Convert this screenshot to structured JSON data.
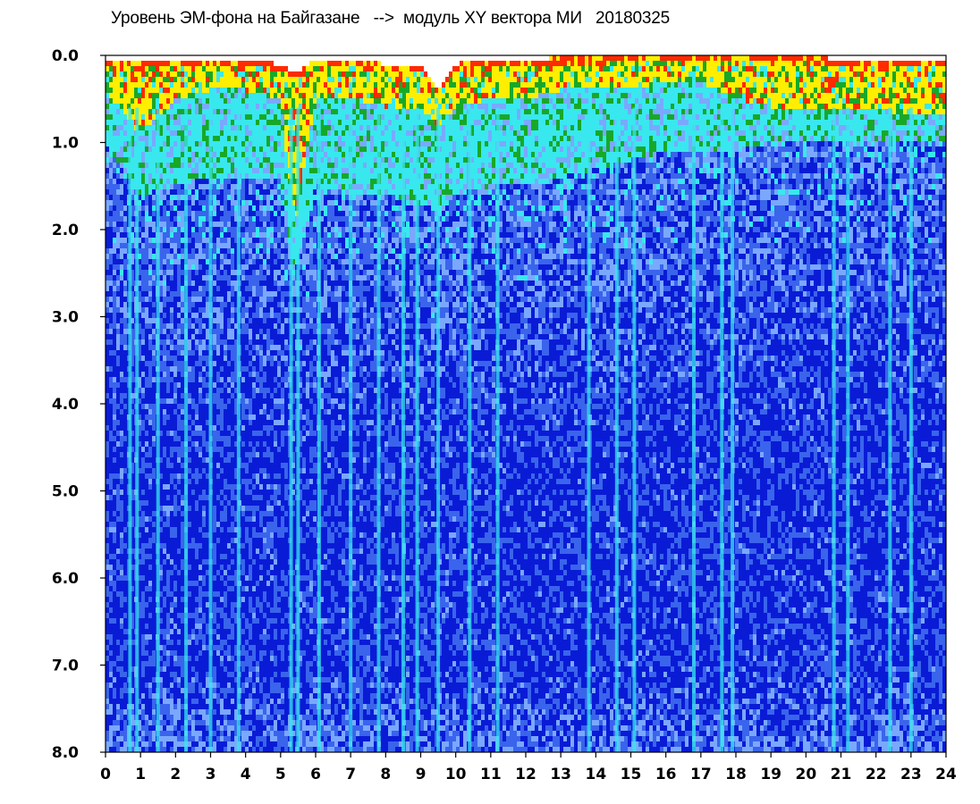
{
  "chart_data": {
    "type": "heatmap",
    "title": "Уровень ЭМ-фона на Байгазане   -->  модуль XY вектора МИ   20180325",
    "xlabel": "",
    "ylabel": "",
    "xlim": [
      0,
      24
    ],
    "ylim": [
      0.0,
      8.0
    ],
    "y_inverted": true,
    "grid": false,
    "x_ticks": [
      "0",
      "1",
      "2",
      "3",
      "4",
      "5",
      "6",
      "7",
      "8",
      "9",
      "10",
      "11",
      "12",
      "13",
      "14",
      "15",
      "16",
      "17",
      "18",
      "19",
      "20",
      "21",
      "22",
      "23",
      "24"
    ],
    "y_ticks": [
      "0.0",
      "1.0",
      "2.0",
      "3.0",
      "4.0",
      "5.0",
      "6.0",
      "7.0",
      "8.0"
    ],
    "colormap": [
      "#0a1bd6",
      "#3a64ec",
      "#7aa8ff",
      "#38e8ee",
      "#18a828",
      "#ffee00",
      "#ff2a00"
    ],
    "background": "#ffffff",
    "band_limit_by_hour": {
      "hours": [
        0,
        1,
        2,
        3,
        4,
        5,
        5.4,
        6,
        7,
        8,
        9,
        9.5,
        10,
        11,
        12,
        13,
        14,
        15,
        16,
        16.8,
        17,
        18,
        19,
        20,
        21,
        22,
        23,
        24
      ],
      "top": [
        0.05,
        0.08,
        0.05,
        0.05,
        0.05,
        0.1,
        0.2,
        0.05,
        0.05,
        0.1,
        0.1,
        0.4,
        0.1,
        0.05,
        0.05,
        0.02,
        0.02,
        0.0,
        0.0,
        0.0,
        0.0,
        0.0,
        0.0,
        0.0,
        0.05,
        0.05,
        0.05,
        0.05
      ],
      "yellow_depth": [
        0.4,
        0.9,
        0.5,
        0.4,
        0.4,
        0.5,
        2.0,
        0.5,
        0.5,
        0.6,
        0.6,
        0.8,
        0.6,
        0.5,
        0.5,
        0.4,
        0.4,
        0.4,
        0.3,
        0.3,
        0.3,
        0.5,
        0.6,
        0.6,
        0.6,
        0.6,
        0.7,
        0.7
      ],
      "cyan_depth": [
        1.0,
        1.6,
        1.5,
        1.4,
        1.4,
        1.4,
        2.5,
        1.5,
        1.6,
        1.6,
        1.7,
        1.8,
        1.6,
        1.5,
        1.5,
        1.4,
        1.3,
        1.2,
        1.1,
        1.1,
        1.1,
        1.1,
        1.0,
        1.0,
        1.0,
        1.0,
        1.0,
        1.0
      ]
    },
    "vertical_streaks_hours": [
      0.7,
      0.9,
      1.5,
      2.3,
      3.0,
      3.8,
      5.3,
      5.5,
      6.1,
      7.0,
      7.8,
      8.5,
      8.9,
      9.5,
      10.4,
      11.2,
      13.8,
      14.6,
      15.1,
      16.8,
      17.6,
      17.9,
      20.8,
      21.2,
      22.4,
      23.0
    ]
  }
}
